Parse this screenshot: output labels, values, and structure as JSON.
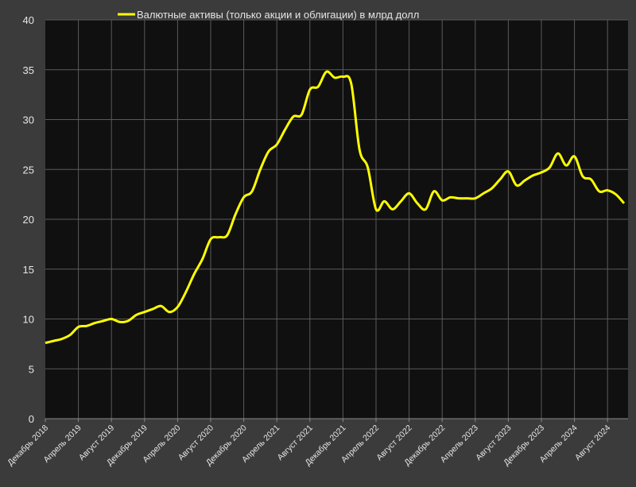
{
  "chart_data": {
    "type": "line",
    "categories": [
      "Декабрь 2018",
      null,
      null,
      null,
      "Апрель 2019",
      null,
      null,
      null,
      "Август 2019",
      null,
      null,
      null,
      "Декабрь 2019",
      null,
      null,
      null,
      "Апрель 2020",
      null,
      null,
      null,
      "Август 2020",
      null,
      null,
      null,
      "Декабрь 2020",
      null,
      null,
      null,
      "Апрель 2021",
      null,
      null,
      null,
      "Август 2021",
      null,
      null,
      null,
      "Декабрь 2021",
      null,
      null,
      null,
      "Апрель 2022",
      null,
      null,
      null,
      "Август 2022",
      null,
      null,
      null,
      "Декабрь 2022",
      null,
      null,
      null,
      "Апрель 2023",
      null,
      null,
      null,
      "Август 2023",
      null,
      null,
      null,
      "Декабрь 2023",
      null,
      null,
      null,
      "Апрель 2024",
      null,
      null,
      null,
      "Август 2024",
      null,
      null
    ],
    "series": [
      {
        "name": "Валютные активы (только акции и облигации) в млрд долл",
        "color": "#ffff00",
        "values": [
          7.6,
          7.8,
          8.0,
          8.4,
          9.2,
          9.3,
          9.6,
          9.8,
          10.0,
          9.7,
          9.8,
          10.4,
          10.7,
          11.0,
          11.3,
          10.7,
          11.2,
          12.7,
          14.5,
          16.0,
          18.0,
          18.2,
          18.4,
          20.5,
          22.2,
          22.8,
          25.0,
          26.8,
          27.5,
          29.0,
          30.3,
          30.5,
          33.0,
          33.3,
          34.8,
          34.2,
          34.3,
          33.6,
          27.0,
          25.2,
          21.0,
          21.8,
          21.0,
          21.8,
          22.6,
          21.6,
          21.0,
          22.8,
          21.9,
          22.2,
          22.1,
          22.1,
          22.1,
          22.6,
          23.1,
          24.0,
          24.8,
          23.4,
          23.9,
          24.4,
          24.7,
          25.2,
          26.6,
          25.4,
          26.3,
          24.3,
          24.0,
          22.8,
          22.9,
          22.5,
          21.6
        ]
      }
    ],
    "ylim": [
      0,
      40
    ],
    "yticks": [
      0,
      5,
      10,
      15,
      20,
      25,
      30,
      35,
      40
    ],
    "grid": true,
    "legend": "top"
  }
}
